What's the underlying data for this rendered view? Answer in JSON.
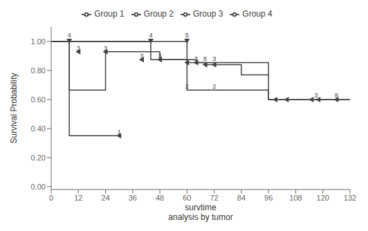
{
  "chart_data": {
    "type": "step",
    "title": "",
    "xlabel": "survtime\nanalysis by tumor",
    "ylabel": "Survival Probability",
    "xlim": [
      0,
      132
    ],
    "ylim": [
      -0.02,
      1.1
    ],
    "xticks": [
      0,
      12,
      24,
      36,
      48,
      60,
      72,
      84,
      96,
      108,
      120,
      132
    ],
    "yticks": [
      {
        "value": 0.0,
        "label": "0.00"
      },
      {
        "value": 0.2,
        "label": "0.20"
      },
      {
        "value": 0.4,
        "label": "0.40"
      },
      {
        "value": 0.6,
        "label": "0.60"
      },
      {
        "value": 0.8,
        "label": "0.80"
      },
      {
        "value": 1.0,
        "label": "1.00"
      }
    ],
    "series": [
      {
        "name": "Group 1",
        "color": "#404040",
        "x": [
          0,
          8,
          8,
          30
        ],
        "values": [
          1.0,
          1.0,
          0.35,
          0.35
        ],
        "censors": {
          "x": [
            30
          ],
          "y": [
            0.35
          ]
        }
      },
      {
        "name": "Group 2",
        "color": "#404040",
        "x": [
          0,
          60,
          60,
          96,
          96,
          132
        ],
        "values": [
          1.0,
          1.0,
          0.665,
          0.665,
          0.6,
          0.6
        ]
      },
      {
        "name": "Group 3",
        "color": "#404040",
        "x": [
          0,
          8,
          8,
          24,
          24,
          36,
          48,
          56,
          64,
          64,
          84,
          96
        ],
        "values": [
          1.0,
          1.0,
          0.665,
          0.665,
          0.93,
          0.93,
          0.875,
          0.875,
          0.855,
          0.855,
          0.855,
          0.77
        ],
        "censors": {
          "x": [
            12,
            24,
            40,
            48
          ],
          "y": [
            0.93,
            0.93,
            0.875,
            0.875
          ]
        }
      },
      {
        "name": "Group 4",
        "color": "#404040",
        "x": [
          0,
          44,
          44,
          56,
          60,
          64,
          68,
          72,
          84,
          84,
          96,
          96,
          132
        ],
        "values": [
          1.0,
          1.0,
          0.875,
          0.875,
          0.855,
          0.855,
          0.84,
          0.84,
          0.825,
          0.77,
          0.77,
          0.6,
          0.6
        ],
        "censors": {
          "x": [
            60,
            64,
            68,
            72,
            99,
            104,
            115,
            118,
            126
          ],
          "y": [
            0.855,
            0.855,
            0.84,
            0.84,
            0.6,
            0.6,
            0.6,
            0.6,
            0.6
          ]
        }
      }
    ],
    "top_censors": {
      "x": [
        8,
        44,
        60
      ],
      "y": [
        1.0,
        1.0,
        1.0
      ],
      "labels": [
        "4",
        "4",
        "5"
      ]
    },
    "annotations": [
      {
        "x": 30,
        "y": 0.355,
        "text": "1"
      },
      {
        "x": 60,
        "y": 0.67,
        "text": "2"
      },
      {
        "x": 72,
        "y": 0.67,
        "text": "2"
      },
      {
        "x": 117,
        "y": 0.607,
        "text": "3"
      },
      {
        "x": 126,
        "y": 0.607,
        "text": "8"
      },
      {
        "x": 12,
        "y": 0.935,
        "text": "3"
      },
      {
        "x": 24,
        "y": 0.935,
        "text": "3"
      },
      {
        "x": 40,
        "y": 0.88,
        "text": "3"
      },
      {
        "x": 48,
        "y": 0.88,
        "text": "3"
      },
      {
        "x": 64,
        "y": 0.862,
        "text": "3"
      },
      {
        "x": 68,
        "y": 0.862,
        "text": "8"
      },
      {
        "x": 72,
        "y": 0.862,
        "text": "3"
      }
    ],
    "legend": "top"
  }
}
